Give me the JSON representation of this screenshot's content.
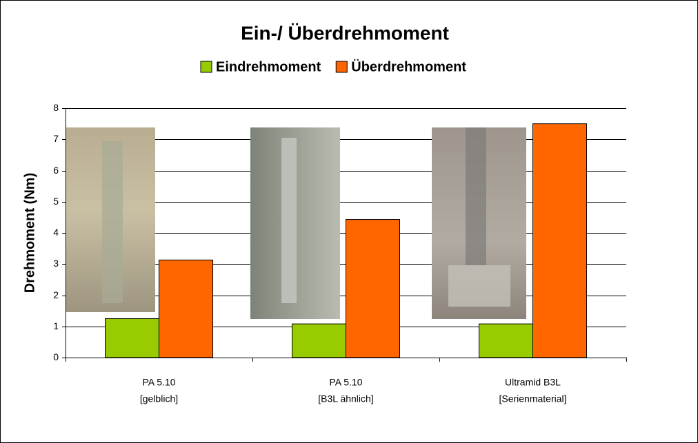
{
  "chart_data": {
    "type": "bar",
    "title": "Ein-/ Überdrehmoment",
    "y_label": "Drehmoment (Nm)",
    "categories": [
      [
        "PA 5.10",
        "[gelblich]"
      ],
      [
        "PA 5.10",
        "[B3L ähnlich]"
      ],
      [
        "Ultramid B3L",
        "[Serienmaterial]"
      ]
    ],
    "series": [
      {
        "name": "Eindrehmoment",
        "color": "#99cc00",
        "values": [
          1.25,
          1.08,
          1.08
        ]
      },
      {
        "name": "Überdrehmoment",
        "color": "#ff6600",
        "values": [
          3.13,
          4.43,
          7.5
        ]
      }
    ],
    "ylim": [
      0,
      8
    ],
    "yticks": [
      0,
      1,
      2,
      3,
      4,
      5,
      6,
      7,
      8
    ],
    "grid": true
  }
}
